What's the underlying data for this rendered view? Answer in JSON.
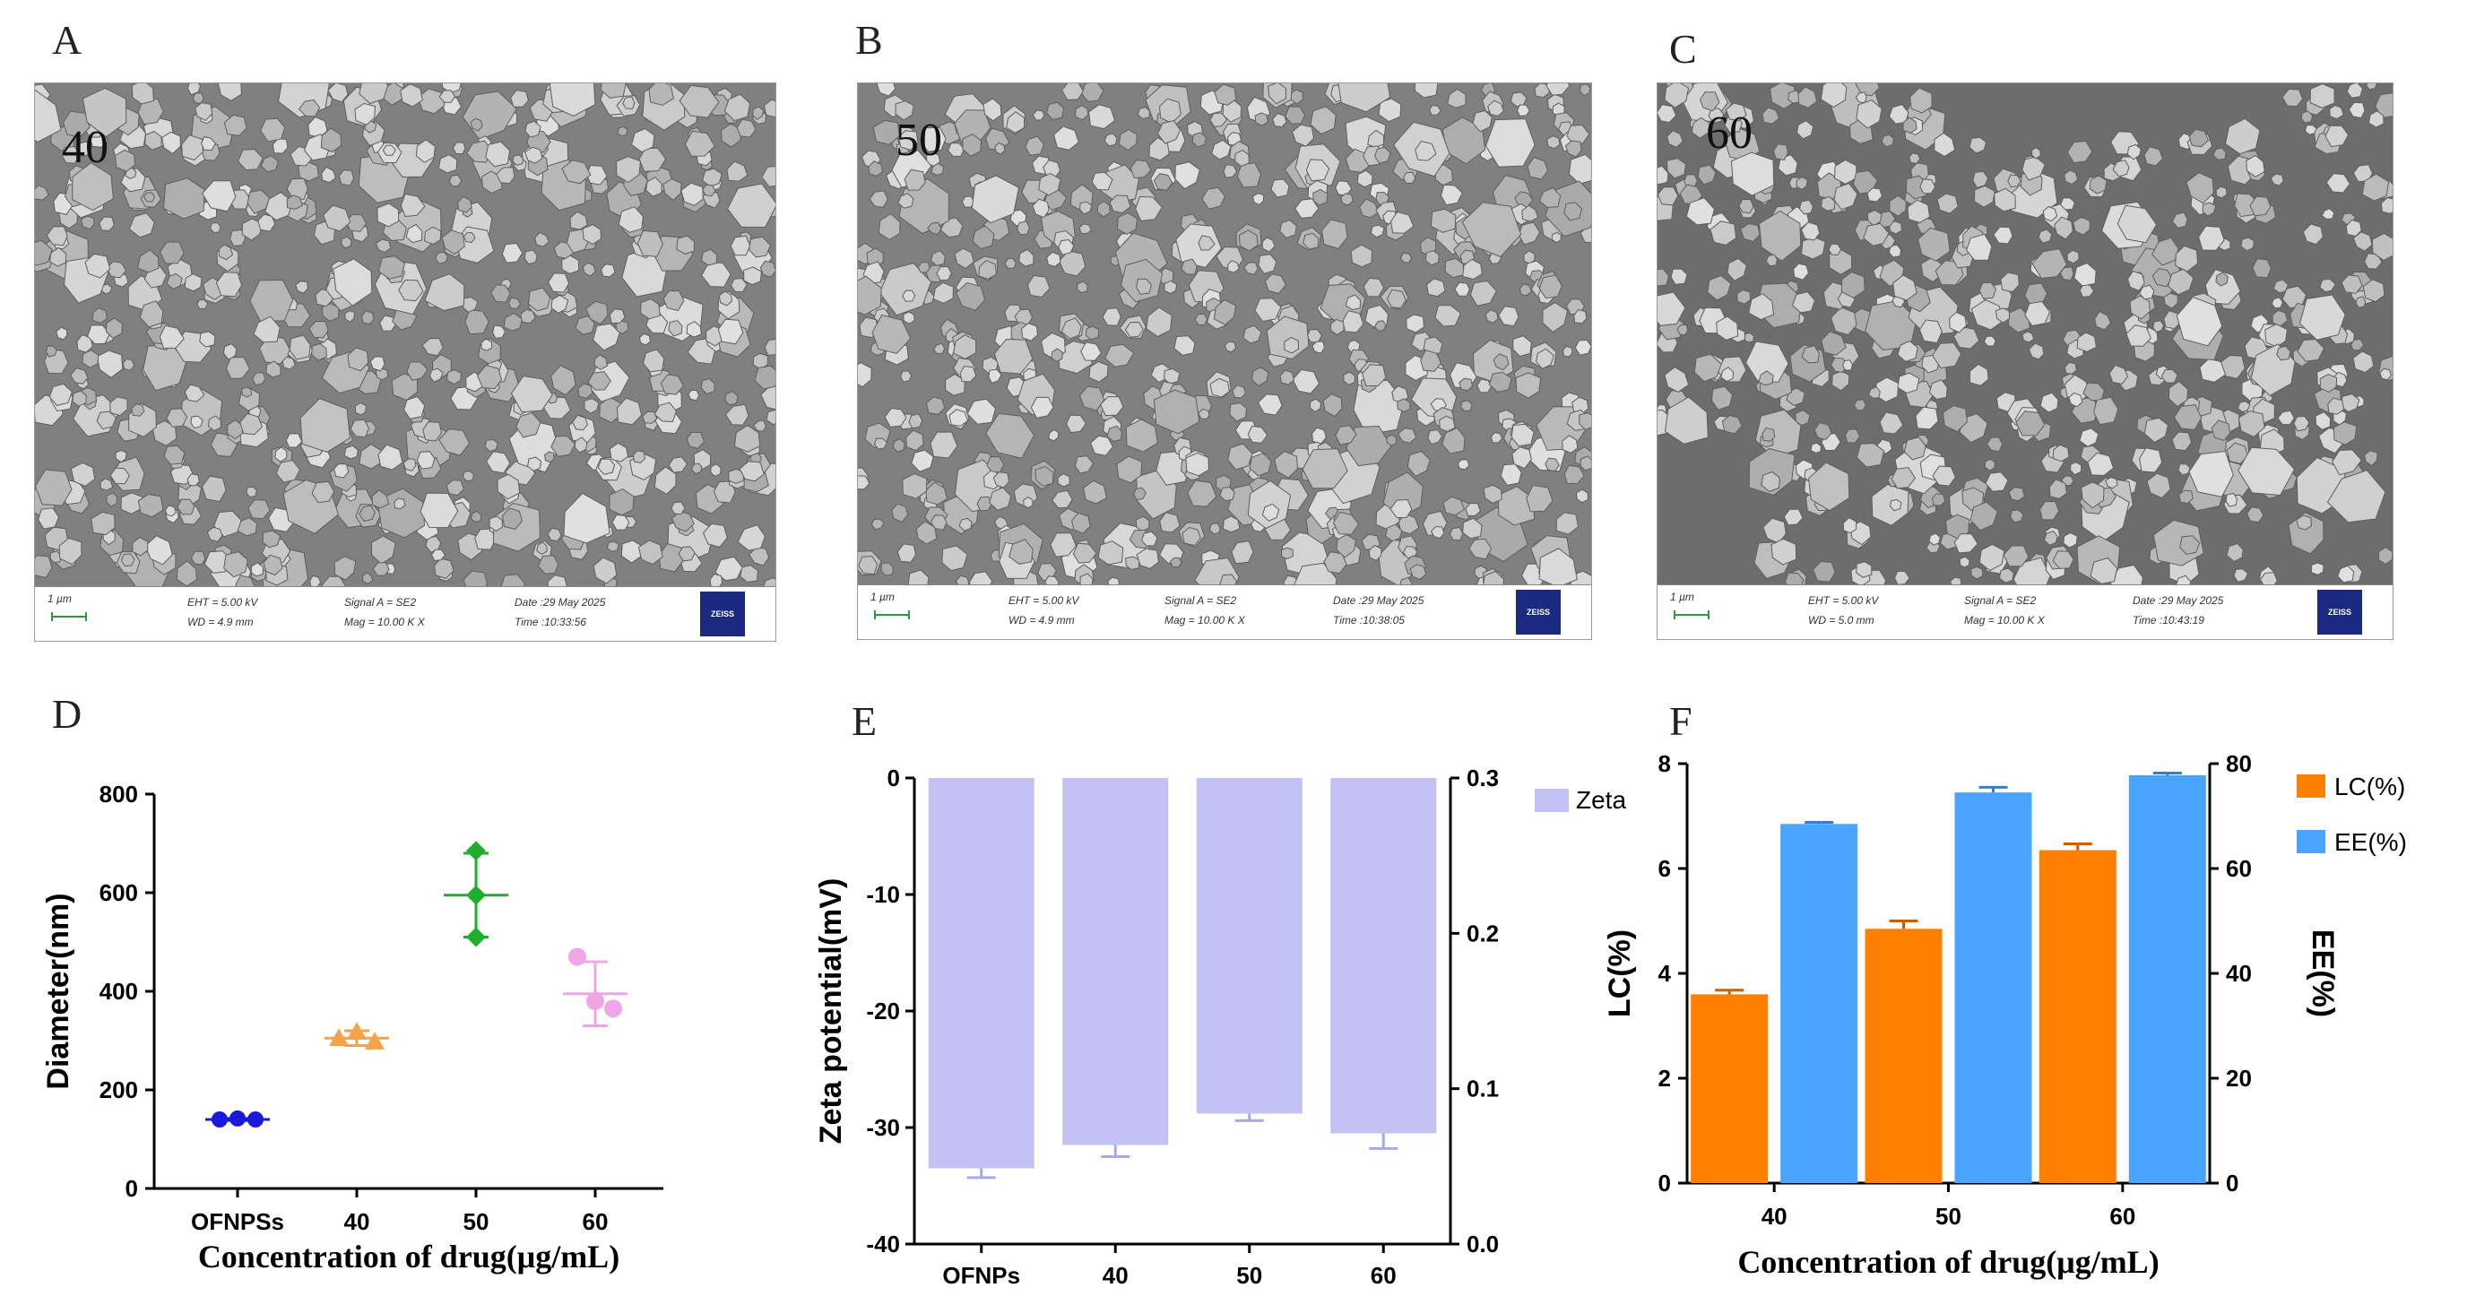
{
  "panels": {
    "A": {
      "letter": "A",
      "label": "40",
      "info": {
        "scale": "1 µm",
        "eht": "EHT = 5.00 kV",
        "wd": "WD = 4.9 mm",
        "signal": "Signal A = SE2",
        "mag": "Mag = 10.00 K X",
        "date": "Date :29 May 2025",
        "time": "Time :10:33:56",
        "logo": "ZEISS"
      }
    },
    "B": {
      "letter": "B",
      "label": "50",
      "info": {
        "scale": "1 µm",
        "eht": "EHT = 5.00 kV",
        "wd": "WD = 4.9 mm",
        "signal": "Signal A = SE2",
        "mag": "Mag = 10.00 K X",
        "date": "Date :29 May 2025",
        "time": "Time :10:38:05",
        "logo": "ZEISS"
      }
    },
    "C": {
      "letter": "C",
      "label": "60",
      "info": {
        "scale": "1 µm",
        "eht": "EHT = 5.00 kV",
        "wd": "WD = 5.0 mm",
        "signal": "Signal A = SE2",
        "mag": "Mag = 10.00 K X",
        "date": "Date :29 May 2025",
        "time": "Time :10:43:19",
        "logo": "ZEISS"
      }
    },
    "D": {
      "letter": "D"
    },
    "E": {
      "letter": "E"
    },
    "F": {
      "letter": "F"
    }
  },
  "chart_data": [
    {
      "id": "D",
      "type": "scatter",
      "title": "",
      "xlabel": "Concentration of drug(μg/mL)",
      "ylabel": "Diameter(nm)",
      "ylim": [
        0,
        800
      ],
      "yticks": [
        "0",
        "200",
        "400",
        "600",
        "800"
      ],
      "categories": [
        "OFNPSs",
        "40",
        "50",
        "60"
      ],
      "colors": [
        "#1a1adb",
        "#f5a24a",
        "#1fae2e",
        "#f0a6e6"
      ],
      "points": [
        [
          140,
          142,
          140
        ],
        [
          305,
          318,
          298
        ],
        [
          685,
          595,
          510
        ],
        [
          470,
          380,
          365
        ]
      ],
      "means": [
        140,
        305,
        595,
        395
      ],
      "sd": [
        2,
        15,
        85,
        65
      ]
    },
    {
      "id": "E",
      "type": "bar",
      "title": "",
      "xlabel": "",
      "ylabel": "Zeta potential(mV)",
      "ylim": [
        -40,
        0
      ],
      "yticks": [
        "0",
        "-10",
        "-20",
        "-30",
        "-40"
      ],
      "y2lim": [
        0.0,
        0.3
      ],
      "y2ticks": [
        "0.3",
        "0.2",
        "0.1",
        "0.0"
      ],
      "categories": [
        "OFNPs",
        "40",
        "50",
        "60"
      ],
      "series": [
        {
          "name": "Zeta",
          "color": "#c2c2f5",
          "values": [
            -33.5,
            -31.5,
            -28.8,
            -30.5
          ],
          "err": [
            0.8,
            1.0,
            0.6,
            1.3
          ]
        }
      ],
      "legend": "top-right"
    },
    {
      "id": "F",
      "type": "bar",
      "title": "",
      "xlabel": "Concentration of drug(μg/mL)",
      "ylabel": "LC(%)",
      "ylim": [
        0,
        8
      ],
      "yticks": [
        "0",
        "2",
        "4",
        "6",
        "8"
      ],
      "y2label": "EE(%)",
      "y2lim": [
        0,
        80
      ],
      "y2ticks": [
        "0",
        "20",
        "40",
        "60",
        "80"
      ],
      "categories": [
        "40",
        "50",
        "60"
      ],
      "series": [
        {
          "name": "LC(%)",
          "axis": "left",
          "color": "#ff7f00",
          "values": [
            3.6,
            4.85,
            6.35
          ],
          "err": [
            0.08,
            0.15,
            0.12
          ]
        },
        {
          "name": "EE(%)",
          "axis": "right",
          "color": "#4aa3ff",
          "values": [
            68.5,
            74.5,
            77.8
          ],
          "err": [
            0.3,
            1.0,
            0.4
          ]
        }
      ],
      "legend": "top-right"
    }
  ]
}
